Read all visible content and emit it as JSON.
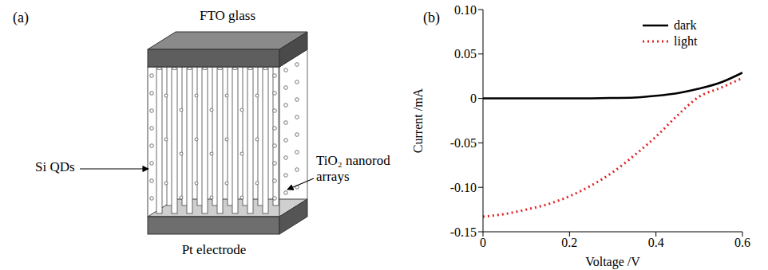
{
  "figure": {
    "a": {
      "letter": "(a)",
      "top_label": "FTO glass",
      "bottom_label": "Pt electrode",
      "left_label": "Si QDs",
      "right_label": "TiO₂ nanorod arrays"
    },
    "b": {
      "letter": "(b)"
    }
  },
  "chart_data": {
    "type": "line",
    "x_label": "Voltage /V",
    "y_label": "Current /mA",
    "x": [
      0,
      0.05,
      0.1,
      0.15,
      0.2,
      0.25,
      0.3,
      0.35,
      0.4,
      0.45,
      0.5,
      0.55,
      0.6
    ],
    "series": [
      {
        "name": "dark",
        "color": "#000000",
        "line_style": "solid",
        "values": [
          0,
          0,
          0,
          0,
          0,
          0.0002,
          0.0005,
          0.001,
          0.003,
          0.006,
          0.011,
          0.018,
          0.029
        ]
      },
      {
        "name": "light",
        "color": "#e02424",
        "line_style": "dotted",
        "values": [
          -0.133,
          -0.13,
          -0.125,
          -0.119,
          -0.11,
          -0.098,
          -0.083,
          -0.064,
          -0.043,
          -0.019,
          0.002,
          0.012,
          0.023
        ]
      }
    ],
    "xlim": [
      0,
      0.6
    ],
    "xticks": [
      0,
      0.2,
      0.4,
      0.6
    ],
    "ylim": [
      -0.15,
      0.1
    ],
    "yticks": [
      -0.15,
      {
        "value": -0.1,
        "label": "-0.10"
      },
      -0.05,
      0,
      0.05,
      {
        "value": 0.1,
        "label": "0.10"
      }
    ],
    "legend": "top-right",
    "grid": false
  }
}
